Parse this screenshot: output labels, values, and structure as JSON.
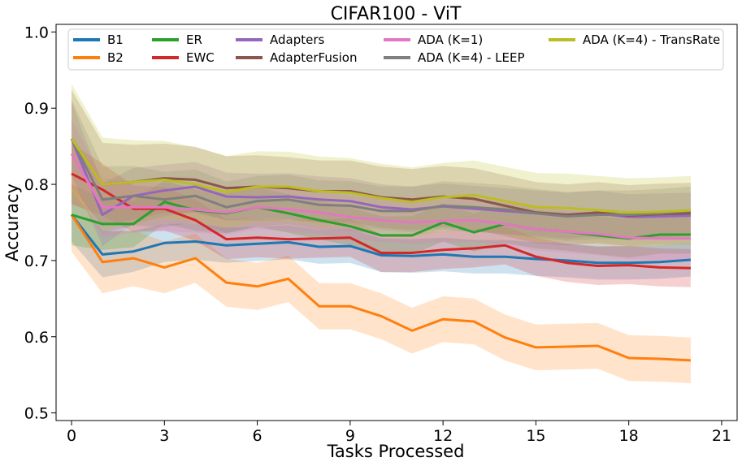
{
  "chart_data": {
    "type": "line",
    "title": "CIFAR100 - ViT",
    "xlabel": "Tasks Processed",
    "ylabel": "Accuracy",
    "xlim": [
      -0.5,
      21.5
    ],
    "ylim": [
      0.49,
      1.01
    ],
    "xticks": [
      0,
      3,
      6,
      9,
      12,
      15,
      18,
      21
    ],
    "xtick_labels": [
      "0",
      "3",
      "6",
      "9",
      "12",
      "15",
      "18",
      "21"
    ],
    "yticks": [
      0.5,
      0.6,
      0.7,
      0.8,
      0.9,
      1.0
    ],
    "ytick_labels": [
      "0.5",
      "0.6",
      "0.7",
      "0.8",
      "0.9",
      "1.0"
    ],
    "grid": false,
    "legend_position": "top",
    "x": [
      0,
      1,
      2,
      3,
      4,
      5,
      6,
      7,
      8,
      9,
      10,
      11,
      12,
      13,
      14,
      15,
      16,
      17,
      18,
      19,
      20
    ],
    "series": [
      {
        "name": "B1",
        "color": "#1f77b4",
        "values": [
          0.76,
          0.708,
          0.712,
          0.723,
          0.725,
          0.72,
          0.722,
          0.724,
          0.718,
          0.719,
          0.707,
          0.706,
          0.708,
          0.705,
          0.705,
          0.702,
          0.7,
          0.697,
          0.697,
          0.698,
          0.701
        ],
        "band": 0.022
      },
      {
        "name": "B2",
        "color": "#ff7f0e",
        "values": [
          0.76,
          0.698,
          0.703,
          0.691,
          0.703,
          0.671,
          0.666,
          0.676,
          0.64,
          0.64,
          0.627,
          0.608,
          0.623,
          0.62,
          0.599,
          0.586,
          0.587,
          0.588,
          0.572,
          0.571,
          0.569
        ],
        "band": 0.03
      },
      {
        "name": "ER",
        "color": "#2ca02c",
        "values": [
          0.76,
          0.748,
          0.748,
          0.777,
          0.766,
          0.762,
          0.77,
          0.762,
          0.753,
          0.745,
          0.733,
          0.733,
          0.75,
          0.737,
          0.748,
          0.741,
          0.738,
          0.733,
          0.729,
          0.734,
          0.734
        ],
        "band": 0.025
      },
      {
        "name": "EWC",
        "color": "#d62728",
        "values": [
          0.814,
          0.793,
          0.768,
          0.768,
          0.753,
          0.728,
          0.73,
          0.728,
          0.729,
          0.73,
          0.71,
          0.71,
          0.714,
          0.716,
          0.72,
          0.705,
          0.697,
          0.693,
          0.694,
          0.691,
          0.69
        ],
        "band": 0.025
      },
      {
        "name": "Adapters",
        "color": "#9467bd",
        "values": [
          0.86,
          0.76,
          0.785,
          0.792,
          0.797,
          0.784,
          0.783,
          0.784,
          0.78,
          0.778,
          0.77,
          0.767,
          0.771,
          0.768,
          0.765,
          0.762,
          0.759,
          0.762,
          0.757,
          0.758,
          0.759
        ],
        "band": 0.03
      },
      {
        "name": "AdapterFusion",
        "color": "#8c564b",
        "values": [
          0.86,
          0.8,
          0.803,
          0.808,
          0.806,
          0.795,
          0.797,
          0.795,
          0.791,
          0.791,
          0.783,
          0.78,
          0.784,
          0.781,
          0.772,
          0.763,
          0.76,
          0.763,
          0.759,
          0.761,
          0.762
        ],
        "band": 0.04
      },
      {
        "name": "ADA (K=1)",
        "color": "#e377c2",
        "values": [
          0.84,
          0.77,
          0.77,
          0.77,
          0.767,
          0.763,
          0.77,
          0.767,
          0.763,
          0.757,
          0.753,
          0.75,
          0.752,
          0.753,
          0.748,
          0.741,
          0.738,
          0.735,
          0.73,
          0.729,
          0.729
        ],
        "band": 0.028
      },
      {
        "name": "ADA (K=4) - LEEP",
        "color": "#7f7f7f",
        "values": [
          0.86,
          0.78,
          0.785,
          0.78,
          0.785,
          0.77,
          0.778,
          0.78,
          0.773,
          0.772,
          0.765,
          0.765,
          0.772,
          0.77,
          0.767,
          0.762,
          0.758,
          0.76,
          0.76,
          0.762,
          0.765
        ],
        "band": 0.032
      },
      {
        "name": "ADA (K=4) - TransRate",
        "color": "#bcbd22",
        "values": [
          0.86,
          0.8,
          0.803,
          0.806,
          0.8,
          0.79,
          0.797,
          0.797,
          0.791,
          0.789,
          0.782,
          0.777,
          0.783,
          0.786,
          0.778,
          0.77,
          0.769,
          0.766,
          0.763,
          0.764,
          0.766
        ],
        "band": 0.045
      }
    ]
  }
}
